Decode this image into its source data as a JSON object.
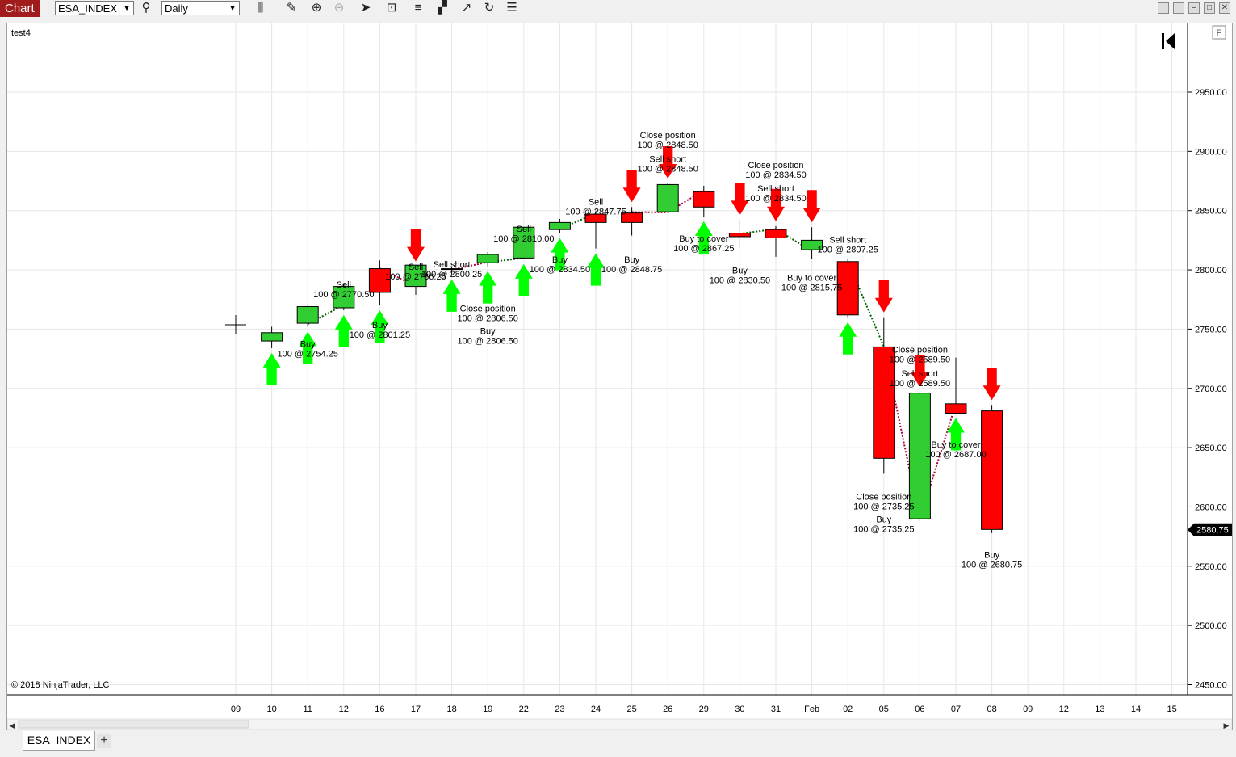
{
  "toolbar": {
    "title": "Chart",
    "instrument": "ESA_INDEX",
    "period": "Daily",
    "icons": [
      "bars-icon",
      "pencil-icon",
      "zoom-in-icon",
      "zoom-out-icon",
      "pointer-icon",
      "data-box-icon",
      "indicators-icon",
      "strategies-icon",
      "drawing-tools-icon",
      "refresh-icon",
      "properties-icon"
    ]
  },
  "chart": {
    "panel_label": "test4",
    "copyright": "© 2018 NinjaTrader, LLC",
    "f_button": "F",
    "last_price_label": "2580.75",
    "tab_label": "ESA_INDEX",
    "add_tab": "+",
    "colors": {
      "up": "#32cd32",
      "down": "#ff0000",
      "buy_arrow": "#00ff00",
      "sell_arrow": "#ff0000",
      "exec_buy": "#0000ff",
      "exec_sell": "#ff00ff",
      "win_line": "#006400",
      "loss_line": "#b0003a"
    }
  },
  "chart_data": {
    "type": "candlestick",
    "x_tick_labels": [
      "09",
      "10",
      "11",
      "12",
      "16",
      "17",
      "18",
      "19",
      "22",
      "23",
      "24",
      "25",
      "26",
      "29",
      "30",
      "31",
      "Feb",
      "02",
      "05",
      "06",
      "07",
      "08",
      "09",
      "12",
      "13",
      "14",
      "15"
    ],
    "ylim": [
      2440,
      3000
    ],
    "y_ticks": [
      2450,
      2500,
      2550,
      2600,
      2650,
      2700,
      2750,
      2800,
      2850,
      2900,
      2950
    ],
    "y_tick_labels": [
      "2450.00",
      "2500.00",
      "2550.00",
      "2600.00",
      "2650.00",
      "2700.00",
      "2750.00",
      "2800.00",
      "2850.00",
      "2900.00",
      "2950.00"
    ],
    "candles": [
      {
        "x": "10",
        "open": 2740,
        "high": 2752,
        "low": 2734,
        "close": 2747
      },
      {
        "x": "11",
        "open": 2755,
        "high": 2770,
        "low": 2752,
        "close": 2769
      },
      {
        "x": "12",
        "open": 2768,
        "high": 2788,
        "low": 2766,
        "close": 2786
      },
      {
        "x": "16",
        "open": 2801,
        "high": 2808,
        "low": 2770,
        "close": 2781
      },
      {
        "x": "17",
        "open": 2786,
        "high": 2803,
        "low": 2779,
        "close": 2804
      },
      {
        "x": "18",
        "open": 2801,
        "high": 2803,
        "low": 2796,
        "close": 2801
      },
      {
        "x": "19",
        "open": 2806,
        "high": 2815,
        "low": 2803,
        "close": 2813
      },
      {
        "x": "22",
        "open": 2810,
        "high": 2836,
        "low": 2809,
        "close": 2836
      },
      {
        "x": "23",
        "open": 2834,
        "high": 2843,
        "low": 2831,
        "close": 2840
      },
      {
        "x": "24",
        "open": 2847,
        "high": 2850,
        "low": 2818,
        "close": 2840
      },
      {
        "x": "25",
        "open": 2848,
        "high": 2853,
        "low": 2829,
        "close": 2840
      },
      {
        "x": "26",
        "open": 2849,
        "high": 2873,
        "low": 2848,
        "close": 2872
      },
      {
        "x": "29",
        "open": 2866,
        "high": 2871,
        "low": 2845,
        "close": 2853
      },
      {
        "x": "30",
        "open": 2831,
        "high": 2842,
        "low": 2818,
        "close": 2828
      },
      {
        "x": "31",
        "open": 2834,
        "high": 2837,
        "low": 2811,
        "close": 2827
      },
      {
        "x": "Feb",
        "open": 2817,
        "high": 2836,
        "low": 2809,
        "close": 2825
      },
      {
        "x": "02",
        "open": 2807,
        "high": 2809,
        "low": 2760,
        "close": 2762
      },
      {
        "x": "05",
        "open": 2735,
        "high": 2760,
        "low": 2628,
        "close": 2641
      },
      {
        "x": "06",
        "open": 2590,
        "high": 2697,
        "low": 2588,
        "close": 2696
      },
      {
        "x": "07",
        "open": 2687,
        "high": 2726,
        "low": 2679,
        "close": 2679
      },
      {
        "x": "08",
        "open": 2681,
        "high": 2686,
        "low": 2578,
        "close": 2581
      }
    ],
    "buy_arrows": [
      "10",
      "11",
      "12",
      "16",
      "18",
      "19",
      "22",
      "23",
      "24",
      "29",
      "02",
      "07"
    ],
    "sell_arrows": [
      "17",
      "25",
      "26",
      "30",
      "31",
      "Feb",
      "05",
      "06",
      "08"
    ],
    "execution_labels": [
      {
        "x": "11",
        "y": 2735,
        "lines": [
          "Buy",
          "100 @ 2754.25"
        ]
      },
      {
        "x": "12",
        "y": 2785,
        "lines": [
          "Sell",
          "100 @ 2770.50"
        ]
      },
      {
        "x": "16",
        "y": 2751,
        "lines": [
          "Buy",
          "100 @ 2801.25"
        ]
      },
      {
        "x": "17",
        "y": 2800,
        "lines": [
          "Sell",
          "100 @ 2786.25"
        ]
      },
      {
        "x": "18",
        "y": 2802,
        "lines": [
          "Sell short",
          "100 @ 2800.25"
        ]
      },
      {
        "x": "19",
        "y": 2765,
        "lines": [
          "Close position",
          "100 @ 2806.50"
        ]
      },
      {
        "x": "19",
        "y": 2746,
        "lines": [
          "Buy",
          "100 @ 2806.50"
        ]
      },
      {
        "x": "22",
        "y": 2832,
        "lines": [
          "Sell",
          "100 @ 2810.00"
        ]
      },
      {
        "x": "23",
        "y": 2806,
        "lines": [
          "Buy",
          "100 @ 2834.50"
        ]
      },
      {
        "x": "24",
        "y": 2855,
        "lines": [
          "Sell",
          "100 @ 2847.75"
        ]
      },
      {
        "x": "25",
        "y": 2806,
        "lines": [
          "Buy",
          "100 @ 2848.75"
        ]
      },
      {
        "x": "26",
        "y": 2911,
        "lines": [
          "Close position",
          "100 @ 2848.50"
        ]
      },
      {
        "x": "26",
        "y": 2891,
        "lines": [
          "Sell short",
          "100 @ 2848.50"
        ]
      },
      {
        "x": "29",
        "y": 2824,
        "lines": [
          "Buy to cover",
          "100 @ 2867.25"
        ]
      },
      {
        "x": "30",
        "y": 2797,
        "lines": [
          "Buy",
          "100 @ 2830.50"
        ]
      },
      {
        "x": "31",
        "y": 2886,
        "lines": [
          "Close position",
          "100 @ 2834.50"
        ]
      },
      {
        "x": "31",
        "y": 2866,
        "lines": [
          "Sell short",
          "100 @ 2834.50"
        ]
      },
      {
        "x": "Feb",
        "y": 2791,
        "lines": [
          "Buy to cover",
          "100 @ 2815.75"
        ]
      },
      {
        "x": "02",
        "y": 2823,
        "lines": [
          "Sell short",
          "100 @ 2807.25"
        ]
      },
      {
        "x": "05",
        "y": 2606,
        "lines": [
          "Close position",
          "100 @ 2735.25"
        ]
      },
      {
        "x": "05",
        "y": 2587,
        "lines": [
          "Buy",
          "100 @ 2735.25"
        ]
      },
      {
        "x": "06",
        "y": 2730,
        "lines": [
          "Close position",
          "100 @ 2589.50"
        ]
      },
      {
        "x": "06",
        "y": 2710,
        "lines": [
          "Sell short",
          "100 @ 2589.50"
        ]
      },
      {
        "x": "07",
        "y": 2650,
        "lines": [
          "Buy to cover",
          "100 @ 2687.00"
        ]
      },
      {
        "x": "08",
        "y": 2557,
        "lines": [
          "Buy",
          "100 @ 2680.75"
        ]
      }
    ],
    "trade_lines": [
      {
        "from": [
          "11",
          2754.25
        ],
        "to": [
          "12",
          2770.5
        ],
        "result": "win"
      },
      {
        "from": [
          "16",
          2801.25
        ],
        "to": [
          "17",
          2786.25
        ],
        "result": "loss"
      },
      {
        "from": [
          "18",
          2800.25
        ],
        "to": [
          "19",
          2806.5
        ],
        "result": "loss"
      },
      {
        "from": [
          "19",
          2806.5
        ],
        "to": [
          "22",
          2810.0
        ],
        "result": "win"
      },
      {
        "from": [
          "23",
          2834.5
        ],
        "to": [
          "24",
          2847.75
        ],
        "result": "win"
      },
      {
        "from": [
          "25",
          2848.75
        ],
        "to": [
          "26",
          2848.5
        ],
        "result": "loss"
      },
      {
        "from": [
          "26",
          2848.5
        ],
        "to": [
          "29",
          2867.25
        ],
        "result": "loss"
      },
      {
        "from": [
          "30",
          2830.5
        ],
        "to": [
          "31",
          2834.5
        ],
        "result": "win"
      },
      {
        "from": [
          "31",
          2834.5
        ],
        "to": [
          "Feb",
          2815.75
        ],
        "result": "win"
      },
      {
        "from": [
          "02",
          2807.25
        ],
        "to": [
          "05",
          2735.25
        ],
        "result": "win"
      },
      {
        "from": [
          "05",
          2735.25
        ],
        "to": [
          "06",
          2589.5
        ],
        "result": "loss"
      },
      {
        "from": [
          "06",
          2589.5
        ],
        "to": [
          "07",
          2687.0
        ],
        "result": "loss"
      }
    ]
  }
}
